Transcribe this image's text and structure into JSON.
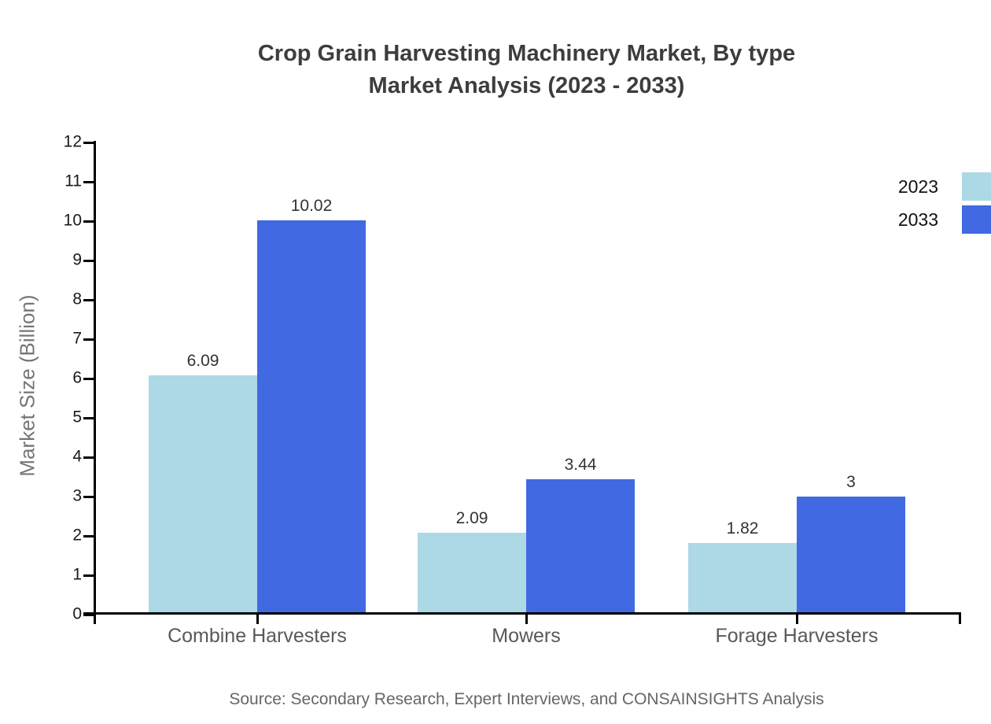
{
  "chart_data": {
    "type": "bar",
    "title_line1": "Crop Grain Harvesting Machinery Market, By type",
    "title_line2": "Market Analysis (2023 - 2033)",
    "ylabel": "Market Size (Billion)",
    "categories": [
      "Combine Harvesters",
      "Mowers",
      "Forage Harvesters"
    ],
    "series": [
      {
        "name": "2023",
        "color": "#ADD8E6",
        "values": [
          6.09,
          2.09,
          1.82
        ],
        "labels": [
          "6.09",
          "2.09",
          "1.82"
        ]
      },
      {
        "name": "2033",
        "color": "#4169E1",
        "values": [
          10.02,
          3.44,
          3
        ],
        "labels": [
          "10.02",
          "3.44",
          "3"
        ]
      }
    ],
    "ylim": [
      0,
      12
    ],
    "ytick_step": 1,
    "yticks": [
      0,
      1,
      2,
      3,
      4,
      5,
      6,
      7,
      8,
      9,
      10,
      11,
      12
    ],
    "grid": false,
    "legend_position": "top-right",
    "axis_color": "#000000",
    "source": "Source: Secondary Research, Expert Interviews, and CONSAINSIGHTS Analysis"
  }
}
